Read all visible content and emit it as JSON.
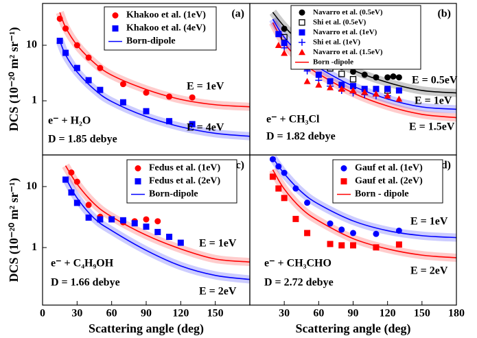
{
  "chart_data": [
    {
      "type": "scatter",
      "label": "(a)",
      "y_label": "DCS (10⁻²⁰ m² sr⁻¹)",
      "log_y": true,
      "xlim": [
        0,
        180
      ],
      "ylim": [
        0.106,
        56.6
      ],
      "yticks": [
        1,
        10
      ],
      "annotations": [
        {
          "text": "E = 1eV",
          "color": "#ff0000"
        },
        {
          "text": "E = 4eV",
          "color": "#0000ff"
        },
        {
          "text": "e⁻ + H₂O",
          "color": "#000000"
        },
        {
          "text": "D = 1.85 debye",
          "color": "#000000"
        }
      ],
      "series": [
        {
          "name": "Khakoo et al. (1eV)",
          "color": "#ff0000",
          "marker": "circle",
          "x": [
            15,
            20,
            30,
            40,
            50,
            70,
            90,
            110,
            130
          ],
          "values": [
            30,
            20,
            10,
            6,
            3.9,
            2.0,
            1.4,
            1.19,
            1.15
          ]
        },
        {
          "name": "Khakoo et al. (4eV)",
          "color": "#0000ff",
          "marker": "square",
          "x": [
            15,
            20,
            30,
            40,
            50,
            70,
            90,
            110,
            130
          ],
          "values": [
            12,
            7.3,
            3.9,
            2.35,
            1.57,
            0.94,
            0.65,
            0.43,
            0.38
          ]
        },
        {
          "name": "Born-dipole",
          "color": "#0000ff",
          "marker": "line",
          "x": [
            15,
            20,
            30,
            45,
            60,
            90,
            120,
            150,
            180
          ],
          "values": [
            12,
            6.7,
            3.3,
            1.6,
            0.97,
            0.52,
            0.34,
            0.26,
            0.23
          ]
        },
        {
          "color": "#ff0000",
          "marker": "line",
          "x": [
            15,
            20,
            30,
            45,
            60,
            90,
            120,
            150,
            180
          ],
          "values": [
            39,
            21,
            10,
            4.8,
            2.9,
            1.6,
            1.06,
            0.85,
            0.78
          ]
        }
      ]
    },
    {
      "type": "scatter",
      "label": "(b)",
      "log_y": true,
      "xlim": [
        0,
        180
      ],
      "ylim": [
        0.1,
        58
      ],
      "annotations": [
        {
          "text": "E = 0.5eV",
          "color": "#000000"
        },
        {
          "text": "E = 1eV",
          "color": "#0000ff"
        },
        {
          "text": "E = 1.5eV",
          "color": "#ff0000"
        },
        {
          "text": "e⁻ + CH₃Cl",
          "color": "#000000"
        },
        {
          "text": "D = 1.82 debye",
          "color": "#000000"
        }
      ],
      "series": [
        {
          "name": "Navarro et al. (0.5eV)",
          "color": "#000000",
          "marker": "circle",
          "x": [
            30,
            40,
            50,
            60,
            70,
            80,
            90,
            100,
            110,
            120,
            125,
            130
          ],
          "values": [
            20,
            13,
            9.4,
            6.9,
            5.0,
            4.0,
            3.3,
            2.9,
            2.6,
            2.6,
            2.7,
            2.6
          ]
        },
        {
          "name": "Shi et al. (0.5eV)",
          "color": "#000000",
          "marker": "open-square",
          "x": [
            30,
            40,
            50,
            60,
            70,
            80,
            90,
            120
          ],
          "values": [
            14,
            10,
            7.2,
            5.0,
            3.8,
            3.0,
            2.4,
            1.5
          ]
        },
        {
          "name": "Navarro et al. (1eV)",
          "color": "#0000ff",
          "marker": "square",
          "x": [
            25,
            30,
            40,
            50,
            60,
            70,
            80,
            90,
            100,
            110,
            120,
            130
          ],
          "values": [
            16,
            11,
            6.3,
            4.0,
            2.9,
            2.2,
            1.9,
            1.8,
            1.6,
            1.6,
            1.6,
            1.5
          ]
        },
        {
          "name": "Shi et al. (1eV)",
          "color": "#0000ff",
          "marker": "plus",
          "x": [
            30,
            40,
            50,
            60,
            70,
            80,
            90,
            100,
            110,
            120
          ],
          "values": [
            9,
            5.5,
            3.4,
            2.3,
            1.8,
            1.5,
            1.35,
            1.25,
            1.2,
            1.2
          ]
        },
        {
          "name": "Navarro et al. (1.5eV)",
          "color": "#ff0000",
          "marker": "triangle",
          "x": [
            25,
            30,
            40,
            50,
            60,
            70,
            80,
            90,
            100,
            110,
            120,
            130
          ],
          "values": [
            10,
            7.2,
            4.2,
            2.2,
            1.9,
            1.7,
            1.6,
            1.5,
            1.4,
            1.3,
            1.2,
            1.05
          ]
        },
        {
          "name": "Born -dipole",
          "color": "#ff0000",
          "marker": "line",
          "x": [
            20,
            30,
            45,
            60,
            90,
            120,
            150,
            180
          ],
          "values": [
            26,
            11,
            5.0,
            3.0,
            1.35,
            0.78,
            0.55,
            0.48
          ]
        },
        {
          "color": "#0000ff",
          "marker": "line",
          "x": [
            20,
            30,
            45,
            60,
            90,
            120,
            150,
            180
          ],
          "values": [
            30,
            14,
            6.5,
            3.9,
            1.8,
            1.05,
            0.75,
            0.68
          ]
        },
        {
          "color": "#000000",
          "marker": "line",
          "x": [
            20,
            30,
            45,
            60,
            90,
            120,
            150,
            180
          ],
          "values": [
            40,
            22,
            11,
            7,
            3.5,
            2.1,
            1.5,
            1.35
          ]
        }
      ]
    },
    {
      "type": "scatter",
      "label": "(c)",
      "y_label": "DCS (10⁻²⁰ m² sr⁻¹)",
      "x_label": "Scattering angle (deg)",
      "log_y": true,
      "xlim": [
        0,
        180
      ],
      "ylim": [
        0.114,
        33
      ],
      "yticks": [
        1,
        10
      ],
      "xticks": [
        0,
        30,
        60,
        90,
        120,
        150
      ],
      "annotations": [
        {
          "text": "E = 1eV",
          "color": "#ff0000"
        },
        {
          "text": "E = 2eV",
          "color": "#0000ff"
        },
        {
          "text": "e⁻ + C₄H₉OH",
          "color": "#000000"
        },
        {
          "text": "D = 1.66 debye",
          "color": "#000000"
        }
      ],
      "series": [
        {
          "name": "Fedus et al. (1eV)",
          "color": "#ff0000",
          "marker": "circle",
          "x": [
            25,
            30,
            40,
            50,
            60,
            70,
            80,
            90,
            100
          ],
          "values": [
            17,
            12,
            5,
            3.2,
            2.9,
            2.6,
            2.7,
            2.9,
            2.7
          ]
        },
        {
          "name": "Fedus et al. (2eV)",
          "color": "#0000ff",
          "marker": "square",
          "x": [
            20,
            25,
            30,
            40,
            50,
            60,
            70,
            80,
            90,
            100,
            110,
            120
          ],
          "values": [
            13,
            8,
            5.4,
            3.1,
            2.9,
            2.9,
            2.8,
            2.5,
            2.2,
            1.8,
            1.5,
            1.2
          ]
        },
        {
          "name": "Born-dipole",
          "color": "#0000ff",
          "marker": "line",
          "x": [
            20,
            30,
            45,
            60,
            90,
            120,
            150,
            180
          ],
          "values": [
            14,
            6.5,
            3.0,
            1.9,
            0.9,
            0.5,
            0.35,
            0.3
          ]
        },
        {
          "color": "#ff0000",
          "marker": "line",
          "x": [
            20,
            30,
            45,
            60,
            90,
            120,
            150,
            180
          ],
          "values": [
            22,
            11,
            5.2,
            3.2,
            1.6,
            0.95,
            0.65,
            0.58
          ]
        }
      ]
    },
    {
      "type": "scatter",
      "label": "(d)",
      "x_label": "Scattering angle (deg)",
      "log_y": true,
      "xlim": [
        0,
        180
      ],
      "ylim": [
        0.073,
        37
      ],
      "xticks": [
        30,
        60,
        90,
        120,
        150,
        180
      ],
      "annotations": [
        {
          "text": "E = 1eV",
          "color": "#0000ff"
        },
        {
          "text": "E = 2eV",
          "color": "#ff0000"
        },
        {
          "text": "e⁻ + CH₃CHO",
          "color": "#000000"
        },
        {
          "text": "D = 2.72 debye",
          "color": "#000000"
        }
      ],
      "series": [
        {
          "name": "Gauf et al. (1eV)",
          "color": "#0000ff",
          "marker": "circle",
          "x": [
            20,
            25,
            30,
            40,
            50,
            70,
            80,
            90,
            110,
            130
          ],
          "values": [
            31,
            23,
            17.6,
            9.2,
            5.1,
            2.15,
            1.67,
            1.45,
            1.4,
            1.6
          ]
        },
        {
          "name": "Gauf et al. (2eV)",
          "color": "#ff0000",
          "marker": "square",
          "x": [
            20,
            25,
            30,
            40,
            50,
            70,
            80,
            90,
            110,
            130
          ],
          "values": [
            15,
            9.2,
            6.2,
            2.6,
            1.45,
            0.92,
            0.87,
            0.87,
            0.8,
            0.9
          ]
        },
        {
          "name": "Born - dipole",
          "color": "#ff0000",
          "marker": "line",
          "x": [
            20,
            30,
            45,
            60,
            90,
            120,
            150,
            180
          ],
          "values": [
            20,
            9,
            4.0,
            2.4,
            1.15,
            0.75,
            0.58,
            0.52
          ]
        },
        {
          "color": "#0000ff",
          "marker": "line",
          "x": [
            20,
            30,
            45,
            60,
            90,
            120,
            150,
            180
          ],
          "values": [
            33,
            17,
            8.0,
            4.8,
            2.4,
            1.6,
            1.3,
            1.2
          ]
        }
      ]
    }
  ]
}
